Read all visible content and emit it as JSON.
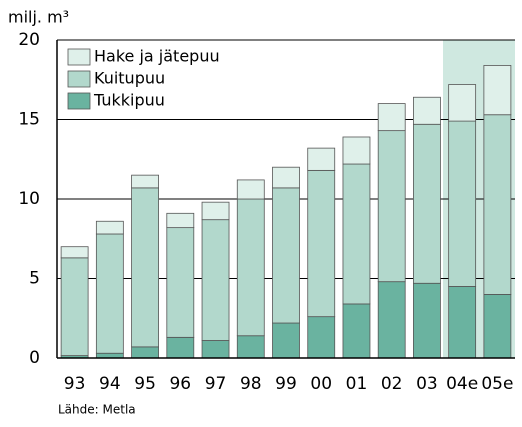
{
  "chart_data": {
    "type": "stacked-bar",
    "ylabel": "milj. m³",
    "source": "Lähde: Metla",
    "categories": [
      "93",
      "94",
      "95",
      "96",
      "97",
      "98",
      "99",
      "00",
      "01",
      "02",
      "03",
      "04e",
      "05e"
    ],
    "series": [
      {
        "name": "Tukkipuu",
        "color": "#6ab3a0",
        "values": [
          0.15,
          0.3,
          0.7,
          1.3,
          1.1,
          1.4,
          2.2,
          2.6,
          3.4,
          4.8,
          4.7,
          4.5,
          4.0
        ]
      },
      {
        "name": "Kuitupuu",
        "color": "#b2d8cc",
        "values": [
          6.15,
          7.5,
          10.0,
          6.9,
          7.6,
          8.6,
          8.5,
          9.2,
          8.8,
          9.5,
          10.0,
          10.4,
          11.3
        ]
      },
      {
        "name": "Hake ja jätepuu",
        "color": "#dff0ea",
        "values": [
          0.7,
          0.8,
          0.8,
          0.9,
          1.1,
          1.2,
          1.3,
          1.4,
          1.7,
          1.7,
          1.7,
          2.3,
          3.1
        ]
      }
    ],
    "ylim": [
      0,
      20
    ],
    "yticks": [
      0,
      5,
      10,
      15,
      20
    ],
    "grid": true
  }
}
